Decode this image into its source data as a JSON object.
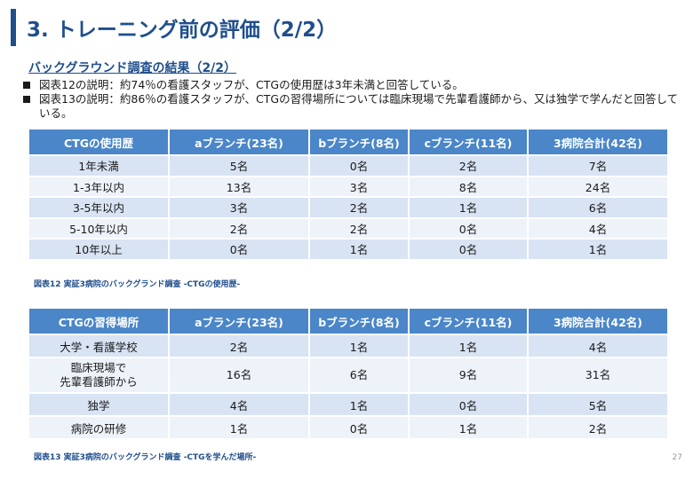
{
  "title": "3. トレーニング前の評価（2/2）",
  "subtitle": "バックグラウンド調査の結果（2/2）",
  "bullets": [
    "図表12の説明：約74％の看護スタッフが、CTGの使用歴は3年未満と回答している。",
    "図表13の説明：約86％の看護スタッフが、CTGの習得場所については臨床現場で先輩看護師から、又は独学で学んだと回答している。"
  ],
  "table1": {
    "headers": [
      "CTGの使用歴",
      "aブランチ(23名)",
      "bブランチ(8名)",
      "cブランチ(11名)",
      "3病院合計(42名)"
    ],
    "rows": [
      [
        "1年未満",
        "5名",
        "0名",
        "2名",
        "7名"
      ],
      [
        "1-3年以内",
        "13名",
        "3名",
        "8名",
        "24名"
      ],
      [
        "3-5年以内",
        "3名",
        "2名",
        "1名",
        "6名"
      ],
      [
        "5-10年以内",
        "2名",
        "2名",
        "0名",
        "4名"
      ],
      [
        "10年以上",
        "0名",
        "1名",
        "0名",
        "1名"
      ]
    ],
    "caption": "図表12 実証3病院のバックグランド調査 -CTGの使用歴-"
  },
  "table2": {
    "headers": [
      "CTGの習得場所",
      "aブランチ(23名)",
      "bブランチ(8名)",
      "cブランチ(11名)",
      "3病院合計(42名)"
    ],
    "rows": [
      [
        "大学・看護学校",
        "2名",
        "1名",
        "1名",
        "4名"
      ],
      [
        "臨床現場で\n先輩看護師から",
        "16名",
        "6名",
        "9名",
        "31名"
      ],
      [
        "独学",
        "4名",
        "1名",
        "0名",
        "5名"
      ],
      [
        "病院の研修",
        "1名",
        "0名",
        "1名",
        "2名"
      ]
    ],
    "caption": "図表13 実証3病院のバックグランド調査 -CTGを学んだ場所-"
  },
  "page_number": "27"
}
